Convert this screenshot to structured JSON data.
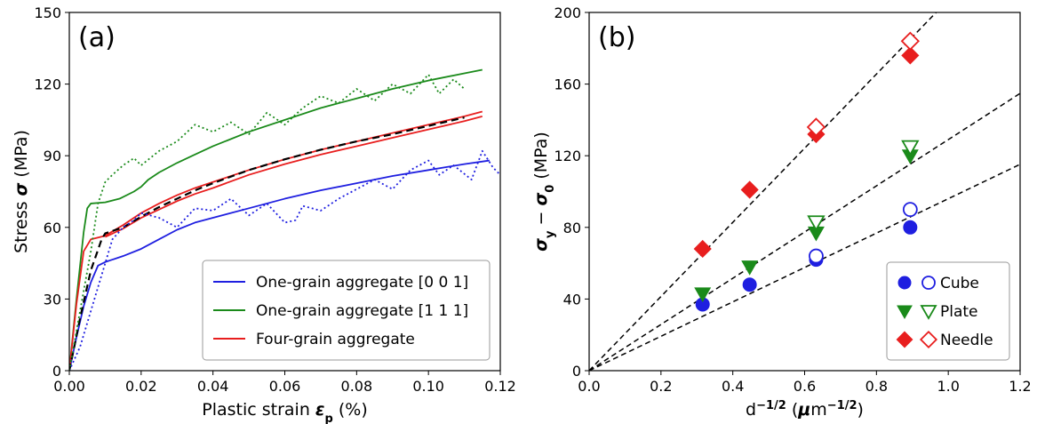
{
  "chart_data": [
    {
      "type": "line",
      "panel_label": "(a)",
      "title": "",
      "xlabel": "Plastic strain",
      "xlabel_symbol": "ε",
      "xlabel_sub": "p",
      "xlabel_unit": "(%)",
      "ylabel": "Stress",
      "ylabel_symbol": "σ",
      "ylabel_unit": "(MPa)",
      "xlim": [
        0,
        0.12
      ],
      "ylim": [
        0,
        150
      ],
      "xticks": [
        "0.00",
        "0.02",
        "0.04",
        "0.06",
        "0.08",
        "0.10",
        "0.12"
      ],
      "xtick_values": [
        0,
        0.02,
        0.04,
        0.06,
        0.08,
        0.1,
        0.12
      ],
      "yticks": [
        "0",
        "30",
        "60",
        "90",
        "120",
        "150"
      ],
      "ytick_values": [
        0,
        30,
        60,
        90,
        120,
        150
      ],
      "legend_position": "lower-right",
      "series": [
        {
          "name": "One-grain aggregate [0 0 1]",
          "color": "#1f1fe0",
          "style": "solid",
          "in_legend": true,
          "x": [
            0,
            0.002,
            0.004,
            0.006,
            0.008,
            0.01,
            0.012,
            0.015,
            0.02,
            0.025,
            0.03,
            0.035,
            0.04,
            0.05,
            0.06,
            0.07,
            0.08,
            0.09,
            0.1,
            0.11,
            0.117
          ],
          "y": [
            0,
            14,
            27,
            37,
            44,
            45.5,
            46.5,
            48,
            51,
            55,
            59,
            62,
            64,
            68,
            72,
            75.5,
            78.5,
            81.5,
            84,
            86.5,
            88
          ]
        },
        {
          "name": "One-grain aggregate [1 1 1]",
          "color": "#1a8a1a",
          "style": "solid",
          "in_legend": true,
          "x": [
            0,
            0.002,
            0.004,
            0.005,
            0.006,
            0.01,
            0.014,
            0.018,
            0.02,
            0.022,
            0.025,
            0.03,
            0.035,
            0.04,
            0.05,
            0.06,
            0.07,
            0.08,
            0.09,
            0.1,
            0.11,
            0.115
          ],
          "y": [
            0,
            30,
            58,
            68,
            70,
            70.5,
            72,
            75,
            77,
            80,
            83,
            87,
            90.5,
            94,
            100,
            105,
            110,
            114,
            118,
            121.5,
            124.5,
            126
          ]
        },
        {
          "name": "Four-grain aggregate",
          "color": "#e81e1e",
          "style": "solid",
          "in_legend": true,
          "x": [
            0,
            0.002,
            0.004,
            0.006,
            0.01,
            0.015,
            0.02,
            0.025,
            0.03,
            0.035,
            0.04,
            0.05,
            0.06,
            0.07,
            0.08,
            0.09,
            0.1,
            0.11,
            0.115
          ],
          "y": [
            0,
            28,
            50,
            55,
            56.5,
            61,
            66,
            70,
            73.5,
            76.5,
            79,
            84,
            88.5,
            92.5,
            96,
            99.5,
            103,
            106.5,
            108.5
          ]
        },
        {
          "name": "",
          "color": "#e81e1e",
          "style": "solid",
          "in_legend": false,
          "x": [
            0.01,
            0.015,
            0.02,
            0.025,
            0.03,
            0.035,
            0.04,
            0.05,
            0.06,
            0.07,
            0.08,
            0.09,
            0.1,
            0.11,
            0.115
          ],
          "y": [
            56,
            59.5,
            64,
            67.5,
            71,
            74,
            76.5,
            82,
            86.5,
            90.5,
            94,
            97.5,
            101,
            104.5,
            106.5
          ]
        },
        {
          "name": "",
          "color": "#000000",
          "style": "dashed",
          "in_legend": false,
          "x": [
            0,
            0.003,
            0.006,
            0.009,
            0.01,
            0.015,
            0.02,
            0.025,
            0.03,
            0.035,
            0.04,
            0.05,
            0.06,
            0.07,
            0.08,
            0.09,
            0.1,
            0.11
          ],
          "y": [
            0,
            22,
            42,
            55,
            57.5,
            60,
            64.5,
            68.5,
            72,
            75.5,
            78.5,
            84,
            88.5,
            92.5,
            96,
            99,
            102.5,
            106
          ]
        },
        {
          "name": "",
          "color": "#1f1fe0",
          "style": "dotted",
          "in_legend": false,
          "x": [
            0,
            0.003,
            0.006,
            0.01,
            0.012,
            0.015,
            0.018,
            0.02,
            0.025,
            0.03,
            0.035,
            0.04,
            0.045,
            0.05,
            0.055,
            0.06,
            0.063,
            0.065,
            0.07,
            0.075,
            0.08,
            0.085,
            0.09,
            0.095,
            0.1,
            0.103,
            0.107,
            0.112,
            0.115,
            0.118,
            0.12
          ],
          "y": [
            0,
            10,
            25,
            45,
            55,
            60,
            63,
            66,
            64,
            60,
            68,
            67,
            72,
            65,
            70,
            62,
            63,
            69,
            67,
            72,
            76,
            80,
            76,
            84,
            88,
            82,
            86,
            80,
            92,
            85,
            82
          ]
        },
        {
          "name": "",
          "color": "#1a8a1a",
          "style": "dotted",
          "in_legend": false,
          "x": [
            0,
            0.003,
            0.006,
            0.008,
            0.01,
            0.012,
            0.015,
            0.018,
            0.02,
            0.025,
            0.03,
            0.035,
            0.04,
            0.045,
            0.05,
            0.055,
            0.06,
            0.065,
            0.07,
            0.075,
            0.08,
            0.085,
            0.09,
            0.095,
            0.1,
            0.103,
            0.107,
            0.11
          ],
          "y": [
            0,
            25,
            50,
            70,
            79,
            82,
            86,
            89,
            86,
            92,
            96,
            103,
            100,
            104,
            99,
            108,
            103,
            110,
            115,
            112,
            118,
            113,
            120,
            116,
            124,
            116,
            122,
            118
          ]
        }
      ]
    },
    {
      "type": "scatter",
      "panel_label": "(b)",
      "title": "",
      "xlabel": "d",
      "xlabel_sup": "−1/2",
      "xlabel_unit_symbol": "μ",
      "xlabel_unit_text": "m",
      "xlabel_unit_sup": "−1/2",
      "ylabel_symbol1": "σ",
      "ylabel_sub1": "y",
      "ylabel_op": "−",
      "ylabel_symbol2": "σ",
      "ylabel_sub2": "0",
      "ylabel_unit": "(MPa)",
      "xlim": [
        0,
        1.2
      ],
      "ylim": [
        0,
        200
      ],
      "xticks": [
        "0.0",
        "0.2",
        "0.4",
        "0.6",
        "0.8",
        "1.0",
        "1.2"
      ],
      "xtick_values": [
        0,
        0.2,
        0.4,
        0.6,
        0.8,
        1.0,
        1.2
      ],
      "yticks": [
        "0",
        "40",
        "80",
        "120",
        "160",
        "200"
      ],
      "ytick_values": [
        0,
        40,
        80,
        120,
        160,
        200
      ],
      "legend_position": "lower-right",
      "fit_lines": [
        {
          "slope": 96,
          "color": "#000000",
          "style": "dashed"
        },
        {
          "slope": 129,
          "color": "#000000",
          "style": "dashed"
        },
        {
          "slope": 207,
          "color": "#000000",
          "style": "dashed"
        }
      ],
      "series": [
        {
          "name": "Cube",
          "color": "#1f1fe0",
          "marker": "circle",
          "filled": {
            "x": [
              0.316,
              0.447,
              0.632,
              0.894
            ],
            "y": [
              37,
              48,
              62,
              80
            ]
          },
          "open": {
            "x": [
              0.632,
              0.894
            ],
            "y": [
              64,
              90
            ]
          }
        },
        {
          "name": "Plate",
          "color": "#1a8a1a",
          "marker": "triangle-down",
          "filled": {
            "x": [
              0.316,
              0.447,
              0.632,
              0.894
            ],
            "y": [
              43,
              58,
              77,
              120
            ]
          },
          "open": {
            "x": [
              0.632,
              0.894
            ],
            "y": [
              83,
              125
            ]
          }
        },
        {
          "name": "Needle",
          "color": "#e81e1e",
          "marker": "diamond",
          "filled": {
            "x": [
              0.316,
              0.447,
              0.632,
              0.894
            ],
            "y": [
              68,
              101,
              132,
              176
            ]
          },
          "open": {
            "x": [
              0.632,
              0.894
            ],
            "y": [
              136,
              184
            ]
          }
        }
      ]
    }
  ]
}
